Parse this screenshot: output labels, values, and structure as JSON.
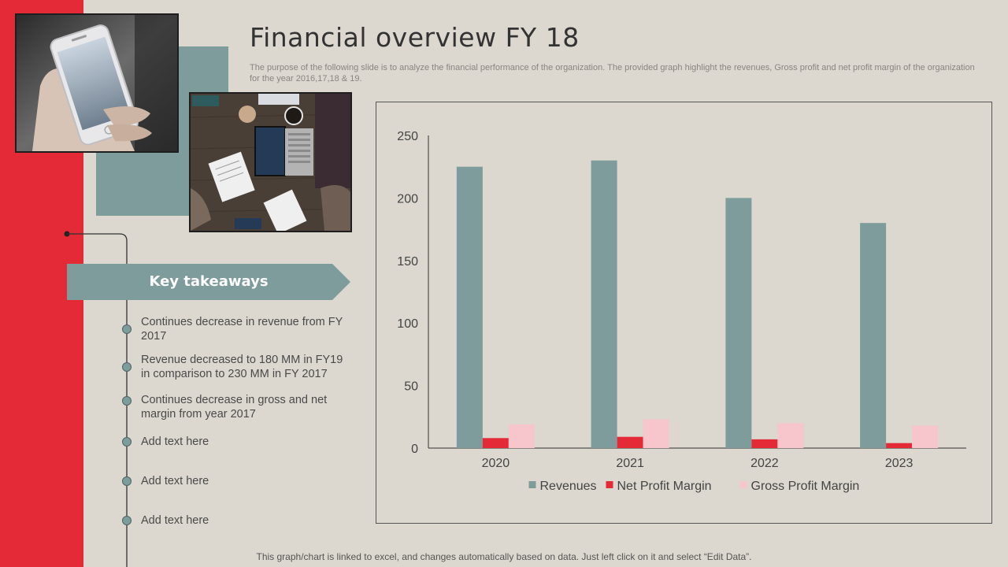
{
  "slide": {
    "title": "Financial overview FY 18",
    "subtitle": "The purpose of the following slide is to analyze the financial performance of the organization. The provided graph highlight the revenues, Gross profit and net profit margin of the organization for the year 2016,17,18 & 19.",
    "footnote": "This graph/chart is linked to excel, and changes automatically based on data. Just left click on it and select “Edit Data”."
  },
  "colors": {
    "red_band": "#e32a36",
    "teal": "#7f9c9c",
    "background": "#dcd7cf"
  },
  "takeaways": {
    "heading": "Key takeaways",
    "items": [
      "Continues decrease in revenue from FY 2017",
      "Revenue decreased to 180 MM in FY19 in comparison to 230 MM in FY 2017",
      "Continues decrease in gross and net margin from year 2017",
      "Add text here",
      "Add text here",
      "Add text here"
    ]
  },
  "chart_data": {
    "type": "bar",
    "title": "",
    "xlabel": "",
    "ylabel": "",
    "categories": [
      "2020",
      "2021",
      "2022",
      "2023"
    ],
    "series": [
      {
        "name": "Revenues",
        "values": [
          225,
          230,
          200,
          180
        ],
        "color": "#7f9c9c"
      },
      {
        "name": "Net Profit Margin",
        "values": [
          8,
          9,
          7,
          4
        ],
        "color": "#e32a36"
      },
      {
        "name": "Gross Profit Margin",
        "values": [
          19,
          23,
          20,
          18
        ],
        "color": "#f7c6cd"
      }
    ],
    "ylim": [
      0,
      250
    ],
    "yticks": [
      "0",
      "50",
      "100",
      "150",
      "200",
      "250"
    ],
    "grid": false,
    "legend": "bottom"
  }
}
